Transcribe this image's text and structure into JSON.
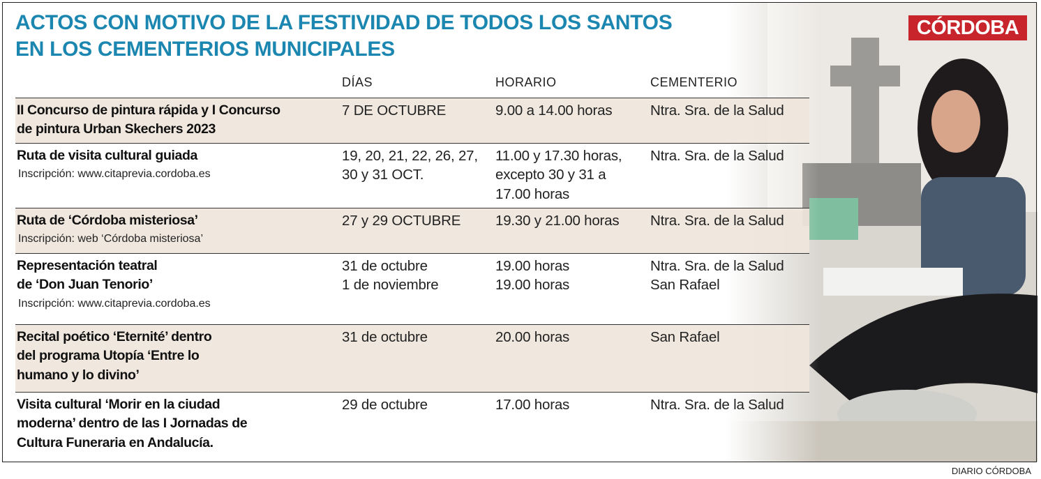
{
  "header": {
    "title": [
      "ACTOS CON MOTIVO DE LA FESTIVIDAD DE TODOS LOS SANTOS",
      "EN LOS CEMENTERIOS MUNICIPALES"
    ],
    "logo": "CÓRDOBA"
  },
  "table": {
    "columns": [
      "DÍAS",
      "HORARIO",
      "CEMENTERIO"
    ],
    "rows": [
      {
        "event": [
          "II Concurso de pintura rápida y I Concurso",
          "de pintura Urban Skechers 2023"
        ],
        "days": [
          "7 DE OCTUBRE"
        ],
        "time": [
          "9.00 a 14.00 horas"
        ],
        "place": [
          "Ntra. Sra. de la Salud"
        ]
      },
      {
        "event": [
          "Ruta de visita cultural guiada"
        ],
        "note": "Inscripción: www.citaprevia.cordoba.es",
        "days": [
          "19, 20, 21, 22, 26, 27,",
          "30 y 31 OCT."
        ],
        "time": [
          "11.00 y 17.30 horas,",
          "excepto 30 y 31 a",
          "17.00 horas"
        ],
        "place": [
          "Ntra. Sra. de la Salud"
        ]
      },
      {
        "event": [
          "Ruta de ‘Córdoba misteriosa’"
        ],
        "note": "Inscripción: web ‘Córdoba misteriosa’",
        "days": [
          "27 y 29 OCTUBRE"
        ],
        "time": [
          "19.30 y 21.00 horas"
        ],
        "place": [
          "Ntra. Sra. de la Salud"
        ]
      },
      {
        "event": [
          "Representación teatral",
          "de ‘Don Juan Tenorio’"
        ],
        "note": "Inscripción: www.citaprevia.cordoba.es",
        "days": [
          "31 de octubre",
          "1 de noviembre"
        ],
        "time": [
          "19.00 horas",
          "19.00 horas"
        ],
        "place": [
          "Ntra. Sra. de la Salud",
          "San Rafael"
        ]
      },
      {
        "event": [
          "Recital poético ‘Eternité’ dentro",
          "del programa Utopía ‘Entre lo",
          "humano y lo divino’"
        ],
        "days": [
          "31 de octubre"
        ],
        "time": [
          "20.00 horas"
        ],
        "place": [
          "San Rafael"
        ]
      },
      {
        "event": [
          "Visita cultural ‘Morir en la ciudad",
          "moderna’ dentro de las I Jornadas de",
          "Cultura Funeraria en Andalucía."
        ],
        "days": [
          "29 de octubre"
        ],
        "time": [
          "17.00 horas"
        ],
        "place": [
          "Ntra. Sra. de la Salud"
        ]
      }
    ]
  },
  "footer": {
    "credit": "DIARIO CÓRDOBA"
  }
}
